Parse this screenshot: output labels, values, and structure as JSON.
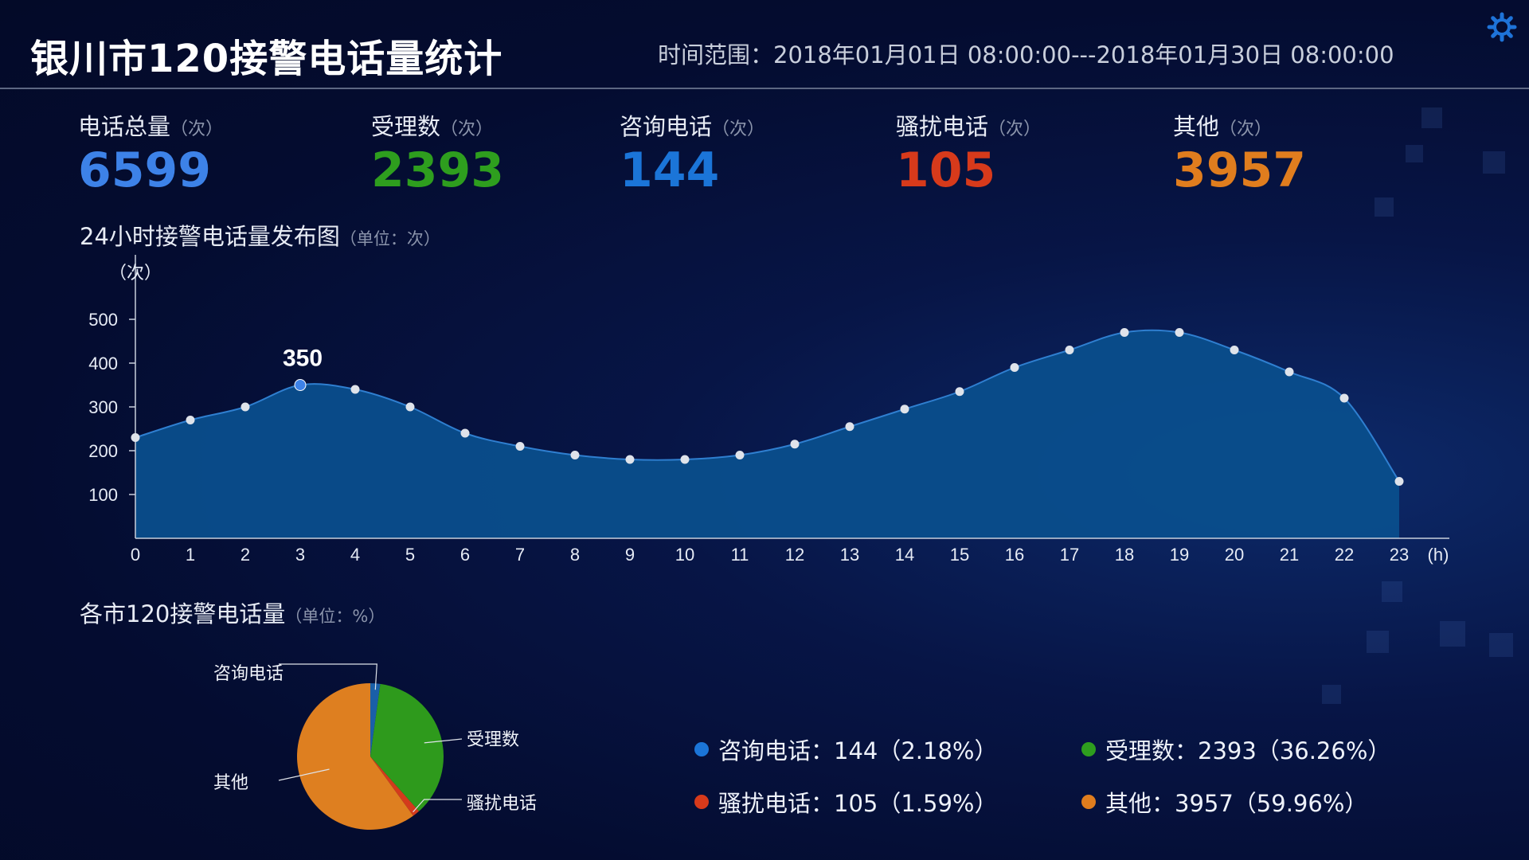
{
  "header": {
    "title": "银川市120接警电话量统计",
    "time_range": "时间范围：2018年01月01日 08:00:00---2018年01月30日 08:00:00"
  },
  "stats": [
    {
      "label": "电话总量",
      "unit": "（次）",
      "value": "6599",
      "color": "#3d82e8"
    },
    {
      "label": "受理数",
      "unit": "（次）",
      "value": "2393",
      "color": "#2e9e1e"
    },
    {
      "label": "咨询电话",
      "unit": "（次）",
      "value": "144",
      "color": "#1b75d8"
    },
    {
      "label": "骚扰电话",
      "unit": "（次）",
      "value": "105",
      "color": "#d73a1b"
    },
    {
      "label": "其他",
      "unit": "（次）",
      "value": "3957",
      "color": "#e07d1e"
    }
  ],
  "line_section": {
    "title": "24小时接警电话量发布图",
    "unit": "（单位：次）"
  },
  "pie_section": {
    "title": "各市120接警电话量",
    "unit": "（单位：%）"
  },
  "legend": [
    {
      "text": "咨询电话：144（2.18%）",
      "color": "#1b75d8"
    },
    {
      "text": "受理数：2393（36.26%）",
      "color": "#2e9e1e"
    },
    {
      "text": "骚扰电话：105（1.59%）",
      "color": "#d73a1b"
    },
    {
      "text": "其他：3957（59.96%）",
      "color": "#e07d1e"
    }
  ],
  "chart_data": [
    {
      "type": "area",
      "title": "24小时接警电话量发布图",
      "ylabel": "（次）",
      "xlabel": "(h)",
      "x": [
        0,
        1,
        2,
        3,
        4,
        5,
        6,
        7,
        8,
        9,
        10,
        11,
        12,
        13,
        14,
        15,
        16,
        17,
        18,
        19,
        20,
        21,
        22,
        23
      ],
      "values": [
        230,
        270,
        300,
        350,
        340,
        300,
        240,
        210,
        190,
        180,
        180,
        190,
        215,
        255,
        295,
        335,
        390,
        430,
        470,
        470,
        430,
        380,
        320,
        130
      ],
      "highlight": {
        "index": 3,
        "label": "350"
      },
      "yticks": [
        100,
        200,
        300,
        400,
        500
      ],
      "ylim": [
        0,
        500
      ],
      "grid": false,
      "color": "#0a4e8c",
      "line_color": "#2f7fd0"
    },
    {
      "type": "pie",
      "title": "各市120接警电话量",
      "slices": [
        {
          "label": "咨询电话",
          "value": 2.18,
          "color": "#1a5fa8"
        },
        {
          "label": "受理数",
          "value": 36.26,
          "color": "#2e9a1c"
        },
        {
          "label": "骚扰电话",
          "value": 1.59,
          "color": "#d33b1c"
        },
        {
          "label": "其他",
          "value": 59.96,
          "color": "#de7f20"
        }
      ]
    }
  ]
}
